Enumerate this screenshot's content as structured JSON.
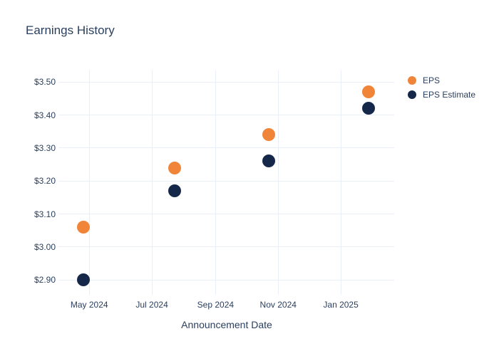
{
  "chart_data": {
    "type": "scatter",
    "title": "Earnings History",
    "xlabel": "Announcement Date",
    "ylabel": "",
    "grid": true,
    "legend_position": "right",
    "background_color": "#ffffff",
    "text_color": "#2a3f5f",
    "grid_color": "#e9eef7",
    "xlim": [
      "2024-04-01",
      "2025-02-22"
    ],
    "ylim": [
      2.855,
      3.535
    ],
    "x_ticks": [
      {
        "date": "2024-05-01",
        "label": "May 2024"
      },
      {
        "date": "2024-07-01",
        "label": "Jul 2024"
      },
      {
        "date": "2024-09-01",
        "label": "Sep 2024"
      },
      {
        "date": "2024-11-01",
        "label": "Nov 2024"
      },
      {
        "date": "2025-01-01",
        "label": "Jan 2025"
      }
    ],
    "y_ticks": [
      {
        "value": 2.9,
        "label": "$2.90"
      },
      {
        "value": 3.0,
        "label": "$3.00"
      },
      {
        "value": 3.1,
        "label": "$3.10"
      },
      {
        "value": 3.2,
        "label": "$3.20"
      },
      {
        "value": 3.3,
        "label": "$3.30"
      },
      {
        "value": 3.4,
        "label": "$3.40"
      },
      {
        "value": 3.5,
        "label": "$3.50"
      }
    ],
    "series": [
      {
        "name": "EPS Estimate",
        "color": "#16284a",
        "marker_size": 18,
        "points": [
          {
            "date": "2024-04-25",
            "value": 2.9
          },
          {
            "date": "2024-07-23",
            "value": 3.17
          },
          {
            "date": "2024-10-23",
            "value": 3.26
          },
          {
            "date": "2025-01-28",
            "value": 3.42
          }
        ]
      },
      {
        "name": "EPS",
        "color": "#f08439",
        "marker_size": 18,
        "points": [
          {
            "date": "2024-04-25",
            "value": 3.06
          },
          {
            "date": "2024-07-23",
            "value": 3.24
          },
          {
            "date": "2024-10-23",
            "value": 3.34
          },
          {
            "date": "2025-01-28",
            "value": 3.47
          }
        ]
      }
    ]
  }
}
